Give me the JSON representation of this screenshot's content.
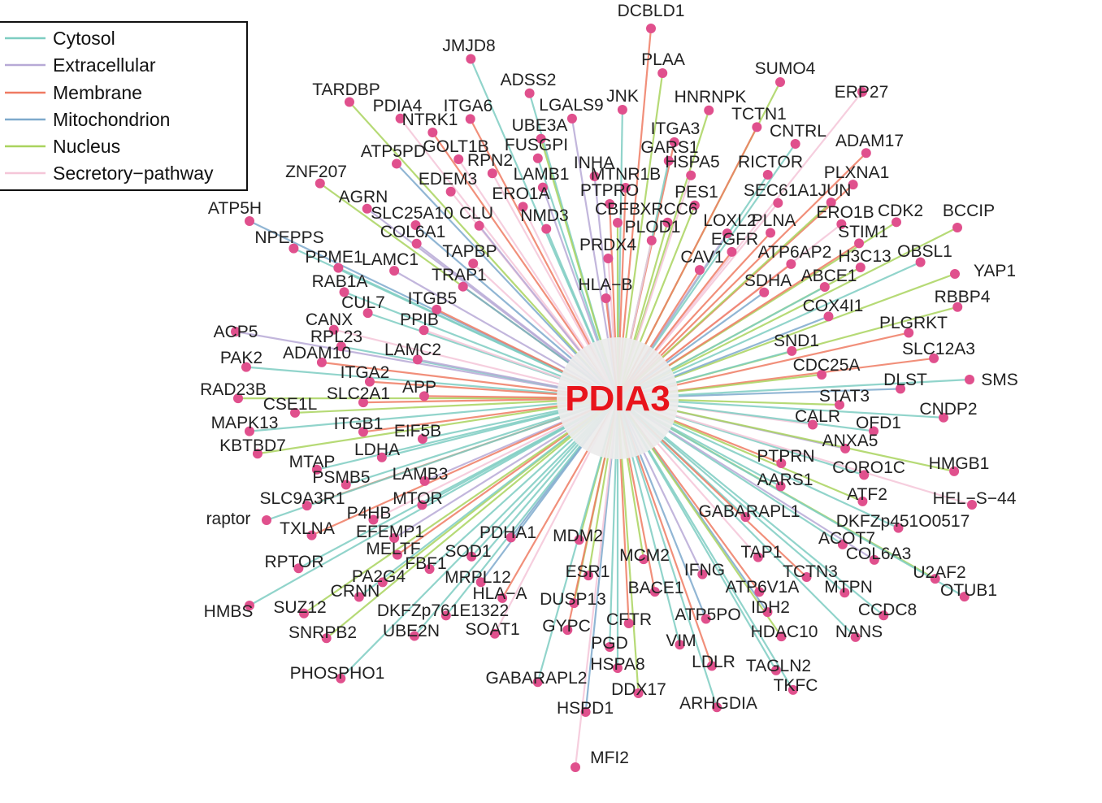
{
  "hub": {
    "label": "PDIA3"
  },
  "legend": {
    "items": [
      {
        "label": "Cytosol",
        "color": "#7ecdc2"
      },
      {
        "label": "Extracellular",
        "color": "#b7a9d6"
      },
      {
        "label": "Membrane",
        "color": "#ef7b63"
      },
      {
        "label": "Mitochondrion",
        "color": "#7ea9cc"
      },
      {
        "label": "Nucleus",
        "color": "#a9d35e"
      },
      {
        "label": "Secretory−pathway",
        "color": "#f5c6d8"
      }
    ]
  },
  "colors": {
    "node": "#e0508d",
    "hub_halo": "#ececec"
  },
  "nodes": [
    {
      "label": "DCBLD1",
      "cat": 2
    },
    {
      "label": "JMJD8",
      "cat": 0
    },
    {
      "label": "PLAA",
      "cat": 4
    },
    {
      "label": "SUMO4",
      "cat": 4
    },
    {
      "label": "ADSS2",
      "cat": 0
    },
    {
      "label": "ERP27",
      "cat": 5
    },
    {
      "label": "TARDBP",
      "cat": 4
    },
    {
      "label": "JNK",
      "cat": 0
    },
    {
      "label": "HNRNPK",
      "cat": 4
    },
    {
      "label": "PDIA4",
      "cat": 5
    },
    {
      "label": "ITGA6",
      "cat": 2
    },
    {
      "label": "LGALS9",
      "cat": 1
    },
    {
      "label": "TCTN1",
      "cat": 2
    },
    {
      "label": "NTRK1",
      "cat": 2
    },
    {
      "label": "UBE3A",
      "cat": 4
    },
    {
      "label": "ITGA3",
      "cat": 2
    },
    {
      "label": "CNTRL",
      "cat": 0
    },
    {
      "label": "ADAM17",
      "cat": 2
    },
    {
      "label": "ATP5PD",
      "cat": 3
    },
    {
      "label": "GOLT1B",
      "cat": 5
    },
    {
      "label": "FUSGPI",
      "cat": 0
    },
    {
      "label": "GARS1",
      "cat": 0
    },
    {
      "label": "ZNF207",
      "cat": 4
    },
    {
      "label": "RPN2",
      "cat": 5
    },
    {
      "label": "INHA",
      "cat": 1
    },
    {
      "label": "HSPA5",
      "cat": 5
    },
    {
      "label": "RICTOR",
      "cat": 0
    },
    {
      "label": "PLXNA1",
      "cat": 2
    },
    {
      "label": "EDEM3",
      "cat": 5
    },
    {
      "label": "LAMB1",
      "cat": 1
    },
    {
      "label": "MTNR1B",
      "cat": 2
    },
    {
      "label": "ATP5H",
      "cat": 3
    },
    {
      "label": "AGRN",
      "cat": 1
    },
    {
      "label": "ERO1A",
      "cat": 5
    },
    {
      "label": "PTPRO",
      "cat": 2
    },
    {
      "label": "PES1",
      "cat": 4
    },
    {
      "label": "SEC61A1",
      "cat": 5
    },
    {
      "label": "JUN",
      "cat": 4
    },
    {
      "label": "SLC25A10",
      "cat": 3
    },
    {
      "label": "CLU",
      "cat": 1
    },
    {
      "label": "NMD3",
      "cat": 0
    },
    {
      "label": "CBFB",
      "cat": 4
    },
    {
      "label": "XRCC6",
      "cat": 4
    },
    {
      "label": "LOXL2",
      "cat": 1
    },
    {
      "label": "PLNA",
      "cat": 2
    },
    {
      "label": "ERO1B",
      "cat": 5
    },
    {
      "label": "CDK2",
      "cat": 4
    },
    {
      "label": "BCCIP",
      "cat": 4
    },
    {
      "label": "NPEPPS",
      "cat": 0
    },
    {
      "label": "COL6A1",
      "cat": 1
    },
    {
      "label": "PLOD1",
      "cat": 5
    },
    {
      "label": "STIM1",
      "cat": 2
    },
    {
      "label": "EGFR",
      "cat": 2
    },
    {
      "label": "PPME1",
      "cat": 0
    },
    {
      "label": "LAMC1",
      "cat": 1
    },
    {
      "label": "TAPBP",
      "cat": 5
    },
    {
      "label": "PRDX4",
      "cat": 5
    },
    {
      "label": "CAV1",
      "cat": 2
    },
    {
      "label": "ATP6AP2",
      "cat": 2
    },
    {
      "label": "H3C13",
      "cat": 4
    },
    {
      "label": "OBSL1",
      "cat": 0
    },
    {
      "label": "YAP1",
      "cat": 4
    },
    {
      "label": "RAB1A",
      "cat": 0
    },
    {
      "label": "TRAP1",
      "cat": 3
    },
    {
      "label": "HLA−B",
      "cat": 2
    },
    {
      "label": "SDHA",
      "cat": 3
    },
    {
      "label": "ABCE1",
      "cat": 0
    },
    {
      "label": "ITGB5",
      "cat": 2
    },
    {
      "label": "RBBP4",
      "cat": 4
    },
    {
      "label": "CUL7",
      "cat": 0
    },
    {
      "label": "COX4I1",
      "cat": 3
    },
    {
      "label": "CANX",
      "cat": 5
    },
    {
      "label": "PPIB",
      "cat": 5
    },
    {
      "label": "PLGRKT",
      "cat": 2
    },
    {
      "label": "ACP5",
      "cat": 1
    },
    {
      "label": "RPL23",
      "cat": 0
    },
    {
      "label": "SND1",
      "cat": 0
    },
    {
      "label": "LAMC2",
      "cat": 1
    },
    {
      "label": "SLC12A3",
      "cat": 2
    },
    {
      "label": "PAK2",
      "cat": 0
    },
    {
      "label": "ADAM10",
      "cat": 2
    },
    {
      "label": "CDC25A",
      "cat": 4
    },
    {
      "label": "ITGA2",
      "cat": 2
    },
    {
      "label": "DLST",
      "cat": 3
    },
    {
      "label": "SMS",
      "cat": 0
    },
    {
      "label": "RAD23B",
      "cat": 4
    },
    {
      "label": "APP",
      "cat": 2
    },
    {
      "label": "SLC2A1",
      "cat": 2
    },
    {
      "label": "STAT3",
      "cat": 4
    },
    {
      "label": "CSE1L",
      "cat": 4
    },
    {
      "label": "CNDP2",
      "cat": 0
    },
    {
      "label": "MAPK13",
      "cat": 0
    },
    {
      "label": "CALR",
      "cat": 5
    },
    {
      "label": "ITGB1",
      "cat": 2
    },
    {
      "label": "OFD1",
      "cat": 0
    },
    {
      "label": "EIF5B",
      "cat": 0
    },
    {
      "label": "KBTBD7",
      "cat": 4
    },
    {
      "label": "ANXA5",
      "cat": 1
    },
    {
      "label": "LDHA",
      "cat": 0
    },
    {
      "label": "PTPRN",
      "cat": 2
    },
    {
      "label": "MTAP",
      "cat": 0
    },
    {
      "label": "HMGB1",
      "cat": 4
    },
    {
      "label": "CORO1C",
      "cat": 0
    },
    {
      "label": "PSMB5",
      "cat": 0
    },
    {
      "label": "LAMB3",
      "cat": 1
    },
    {
      "label": "AARS1",
      "cat": 0
    },
    {
      "label": "ATF2",
      "cat": 4
    },
    {
      "label": "SLC9A3R1",
      "cat": 2
    },
    {
      "label": "MTOR",
      "cat": 0
    },
    {
      "label": "HEL−S−44",
      "cat": 5
    },
    {
      "label": "raptor",
      "cat": 0
    },
    {
      "label": "P4HB",
      "cat": 5
    },
    {
      "label": "GABARAPL1",
      "cat": 0
    },
    {
      "label": "TXLNA",
      "cat": 2
    },
    {
      "label": "DKFZp451O0517",
      "cat": 0
    },
    {
      "label": "EFEMP1",
      "cat": 1
    },
    {
      "label": "PDHA1",
      "cat": 3
    },
    {
      "label": "MDM2",
      "cat": 4
    },
    {
      "label": "ACOT7",
      "cat": 0
    },
    {
      "label": "MELTF",
      "cat": 2
    },
    {
      "label": "COL6A3",
      "cat": 1
    },
    {
      "label": "SOD1",
      "cat": 0
    },
    {
      "label": "RPTOR",
      "cat": 0
    },
    {
      "label": "TAP1",
      "cat": 5
    },
    {
      "label": "MCM2",
      "cat": 4
    },
    {
      "label": "FBF1",
      "cat": 0
    },
    {
      "label": "U2AF2",
      "cat": 4
    },
    {
      "label": "IFNG",
      "cat": 1
    },
    {
      "label": "TCTN3",
      "cat": 2
    },
    {
      "label": "PA2G4",
      "cat": 4
    },
    {
      "label": "ESR1",
      "cat": 4
    },
    {
      "label": "MRPL12",
      "cat": 3
    },
    {
      "label": "OTUB1",
      "cat": 0
    },
    {
      "label": "ATP6V1A",
      "cat": 2
    },
    {
      "label": "MTPN",
      "cat": 0
    },
    {
      "label": "CRNN",
      "cat": 0
    },
    {
      "label": "HLA−A",
      "cat": 2
    },
    {
      "label": "BACE1",
      "cat": 2
    },
    {
      "label": "HMBS",
      "cat": 0
    },
    {
      "label": "SUZ12",
      "cat": 4
    },
    {
      "label": "IDH2",
      "cat": 3
    },
    {
      "label": "CCDC8",
      "cat": 0
    },
    {
      "label": "DUSP13",
      "cat": 4
    },
    {
      "label": "DKFZp761E1322",
      "cat": 0
    },
    {
      "label": "ATP5PO",
      "cat": 3
    },
    {
      "label": "CFTR",
      "cat": 2
    },
    {
      "label": "GYPC",
      "cat": 2
    },
    {
      "label": "SNRPB2",
      "cat": 4
    },
    {
      "label": "UBE2N",
      "cat": 0
    },
    {
      "label": "SOAT1",
      "cat": 5
    },
    {
      "label": "HDAC10",
      "cat": 4
    },
    {
      "label": "NANS",
      "cat": 0
    },
    {
      "label": "VIM",
      "cat": 0
    },
    {
      "label": "PGD",
      "cat": 0
    },
    {
      "label": "LDLR",
      "cat": 2
    },
    {
      "label": "TAGLN2",
      "cat": 0
    },
    {
      "label": "HSPA8",
      "cat": 0
    },
    {
      "label": "PHOSPHO1",
      "cat": 0
    },
    {
      "label": "GABARAPL2",
      "cat": 0
    },
    {
      "label": "TKFC",
      "cat": 0
    },
    {
      "label": "DDX17",
      "cat": 4
    },
    {
      "label": "ARHGDIA",
      "cat": 0
    },
    {
      "label": "HSPD1",
      "cat": 3
    },
    {
      "label": "MFI2",
      "cat": 5
    }
  ]
}
